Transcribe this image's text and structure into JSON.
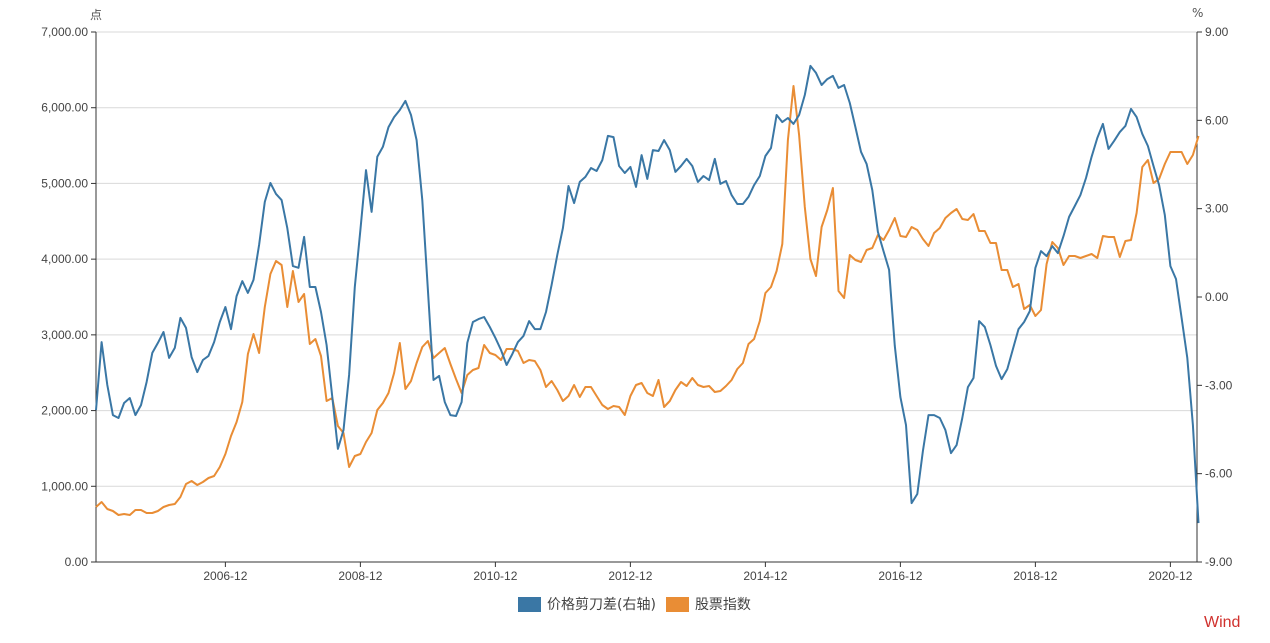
{
  "chart_data": {
    "type": "line",
    "frequency": "monthly",
    "start": "2005-01",
    "left_axis": {
      "unit": "点",
      "ylim": [
        0,
        7000
      ],
      "ticks": [
        "0.00",
        "1,000.00",
        "2,000.00",
        "3,000.00",
        "4,000.00",
        "5,000.00",
        "6,000.00",
        "7,000.00"
      ]
    },
    "right_axis": {
      "unit": "%",
      "ylim": [
        -9,
        9
      ],
      "ticks": [
        "-9.00",
        "-6.00",
        "-3.00",
        "0.00",
        "3.00",
        "6.00",
        "9.00"
      ]
    },
    "x_ticks": [
      "2006-12",
      "2008-12",
      "2010-12",
      "2012-12",
      "2014-12",
      "2016-12",
      "2018-12",
      "2020-12"
    ],
    "grid": true,
    "legend_position": "bottom-center",
    "series": [
      {
        "name": "价格剪刀差(右轴)",
        "axis": "right",
        "color": "#3a77a5",
        "values": [
          -3.84,
          -1.53,
          -2.99,
          -4.01,
          -4.11,
          -3.6,
          -3.43,
          -4.01,
          -3.67,
          -2.89,
          -1.9,
          -1.56,
          -1.19,
          -2.07,
          -1.73,
          -0.71,
          -1.05,
          -2.04,
          -2.55,
          -2.14,
          -2.0,
          -1.53,
          -0.85,
          -0.34,
          -1.09,
          0.03,
          0.54,
          0.14,
          0.58,
          1.77,
          3.23,
          3.87,
          3.5,
          3.29,
          2.34,
          1.05,
          0.99,
          2.04,
          0.34,
          0.34,
          -0.51,
          -1.63,
          -3.4,
          -5.16,
          -4.52,
          -2.65,
          0.34,
          2.28,
          4.31,
          2.89,
          4.76,
          5.1,
          5.77,
          6.11,
          6.35,
          6.66,
          6.18,
          5.33,
          3.29,
          0.24,
          -2.82,
          -2.68,
          -3.57,
          -4.01,
          -4.04,
          -3.57,
          -1.56,
          -0.85,
          -0.75,
          -0.68,
          -1.02,
          -1.39,
          -1.8,
          -2.31,
          -1.94,
          -1.53,
          -1.32,
          -0.82,
          -1.09,
          -1.09,
          -0.51,
          0.41,
          1.43,
          2.34,
          3.77,
          3.19,
          3.91,
          4.08,
          4.38,
          4.28,
          4.65,
          5.47,
          5.43,
          4.45,
          4.21,
          4.42,
          3.74,
          4.82,
          4.01,
          4.99,
          4.96,
          5.33,
          4.99,
          4.25,
          4.45,
          4.69,
          4.45,
          3.91,
          4.11,
          3.97,
          4.69,
          3.84,
          3.94,
          3.46,
          3.16,
          3.16,
          3.4,
          3.8,
          4.11,
          4.79,
          5.06,
          6.18,
          5.94,
          6.08,
          5.88,
          6.18,
          6.86,
          7.85,
          7.61,
          7.2,
          7.4,
          7.51,
          7.1,
          7.2,
          6.59,
          5.77,
          4.93,
          4.52,
          3.63,
          2.21,
          1.56,
          0.92,
          -1.66,
          -3.4,
          -4.35,
          -7.0,
          -6.69,
          -5.23,
          -4.01,
          -4.01,
          -4.11,
          -4.52,
          -5.3,
          -5.03,
          -4.11,
          -3.06,
          -2.75,
          -0.82,
          -1.02,
          -1.63,
          -2.34,
          -2.79,
          -2.45,
          -1.77,
          -1.09,
          -0.85,
          -0.48,
          0.99,
          1.56,
          1.39,
          1.73,
          1.49,
          2.07,
          2.72,
          3.09,
          3.46,
          4.04,
          4.76,
          5.4,
          5.88,
          5.03,
          5.3,
          5.6,
          5.81,
          6.39,
          6.11,
          5.54,
          5.13,
          4.45,
          3.8,
          2.79,
          1.05,
          0.61,
          -0.71,
          -2.07,
          -4.35,
          -7.68
        ]
      },
      {
        "name": "股票指数",
        "axis": "left",
        "color": "#e98d35",
        "values": [
          726,
          792,
          700,
          674,
          621,
          634,
          621,
          687,
          687,
          647,
          647,
          674,
          726,
          753,
          766,
          859,
          1030,
          1070,
          1017,
          1057,
          1109,
          1136,
          1255,
          1426,
          1664,
          1849,
          2113,
          2747,
          3011,
          2760,
          3368,
          3804,
          3976,
          3923,
          3368,
          3843,
          3434,
          3540,
          2879,
          2945,
          2721,
          2126,
          2166,
          1796,
          1704,
          1255,
          1400,
          1426,
          1585,
          1704,
          2008,
          2100,
          2232,
          2496,
          2893,
          2285,
          2391,
          2628,
          2840,
          2919,
          2694,
          2760,
          2826,
          2615,
          2417,
          2232,
          2470,
          2536,
          2562,
          2866,
          2760,
          2734,
          2668,
          2813,
          2813,
          2787,
          2628,
          2668,
          2655,
          2536,
          2311,
          2391,
          2272,
          2126,
          2193,
          2338,
          2179,
          2311,
          2311,
          2193,
          2074,
          2021,
          2060,
          2047,
          1942,
          2193,
          2338,
          2364,
          2232,
          2193,
          2404,
          2047,
          2126,
          2272,
          2377,
          2325,
          2430,
          2338,
          2311,
          2325,
          2245,
          2259,
          2325,
          2404,
          2549,
          2628,
          2879,
          2945,
          3183,
          3553,
          3632,
          3843,
          4200,
          5574,
          6287,
          5640,
          4689,
          4002,
          3777,
          4425,
          4649,
          4940,
          3579,
          3487,
          4055,
          3989,
          3962,
          4121,
          4147,
          4319,
          4253,
          4385,
          4544,
          4306,
          4293,
          4425,
          4385,
          4266,
          4174,
          4345,
          4411,
          4544,
          4610,
          4662,
          4530,
          4517,
          4596,
          4372,
          4372,
          4213,
          4213,
          3857,
          3857,
          3632,
          3672,
          3342,
          3394,
          3249,
          3328,
          3936,
          4227,
          4147,
          3923,
          4042,
          4042,
          4015,
          4042,
          4068,
          4015,
          4306,
          4293,
          4293,
          4028,
          4240,
          4253,
          4610,
          5217,
          5310,
          5006,
          5059,
          5257,
          5415,
          5415,
          5415,
          5257,
          5376,
          5627
        ]
      }
    ]
  },
  "watermark": "Wind"
}
